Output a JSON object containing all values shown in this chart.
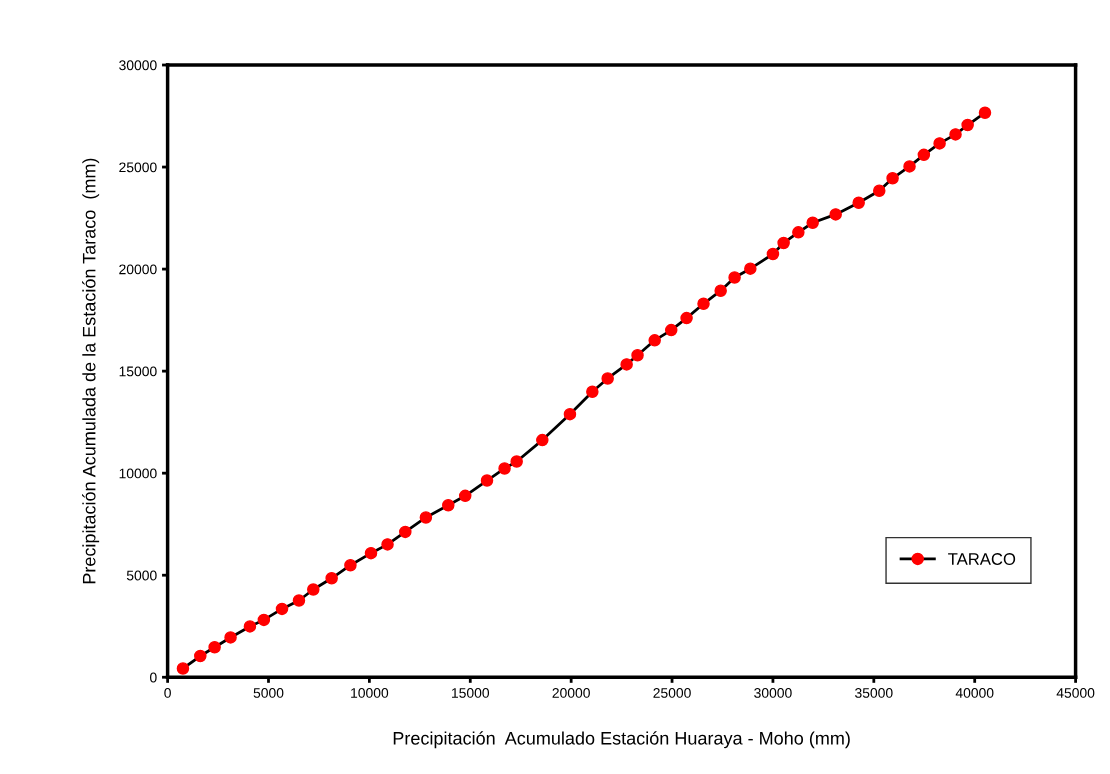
{
  "chart_data": {
    "type": "line",
    "xlabel": "Precipitación  Acumulado Estación Huaraya - Moho (mm)",
    "ylabel": "Precipitación Acumulada de la Estación Taraco  (mm)",
    "xlim": [
      0,
      45000
    ],
    "xticks": [
      0,
      5000,
      10000,
      15000,
      20000,
      25000,
      30000,
      35000,
      40000,
      45000
    ],
    "ylim": [
      0,
      30000
    ],
    "yticks": [
      0,
      5000,
      10000,
      15000,
      20000,
      25000,
      30000
    ],
    "grid": false,
    "legend": "bottom right",
    "marker": "circle",
    "line_style": "solid",
    "x": [
      760,
      1620,
      2330,
      3120,
      4080,
      4770,
      5670,
      6510,
      7220,
      8130,
      9060,
      10080,
      10900,
      11780,
      12800,
      13910,
      14750,
      15830,
      16700,
      17300,
      18570,
      19940,
      21050,
      21810,
      22750,
      23290,
      24140,
      24960,
      25720,
      26560,
      27410,
      28100,
      28880,
      30000,
      30530,
      31260,
      31970,
      33110,
      34250,
      35270,
      35930,
      36770,
      37480,
      38260,
      39050,
      39650,
      40510
    ],
    "series": [
      {
        "name": "TARACO",
        "color": "#ff0000",
        "values": [
          430,
          1040,
          1470,
          1950,
          2490,
          2810,
          3350,
          3760,
          4300,
          4850,
          5490,
          6080,
          6510,
          7120,
          7830,
          8430,
          8890,
          9640,
          10230,
          10570,
          11620,
          12890,
          13990,
          14640,
          15330,
          15780,
          16510,
          17010,
          17600,
          18300,
          18940,
          19590,
          20020,
          20740,
          21280,
          21800,
          22270,
          22680,
          23250,
          23840,
          24450,
          25030,
          25600,
          26160,
          26600,
          27060,
          27660
        ]
      }
    ]
  }
}
